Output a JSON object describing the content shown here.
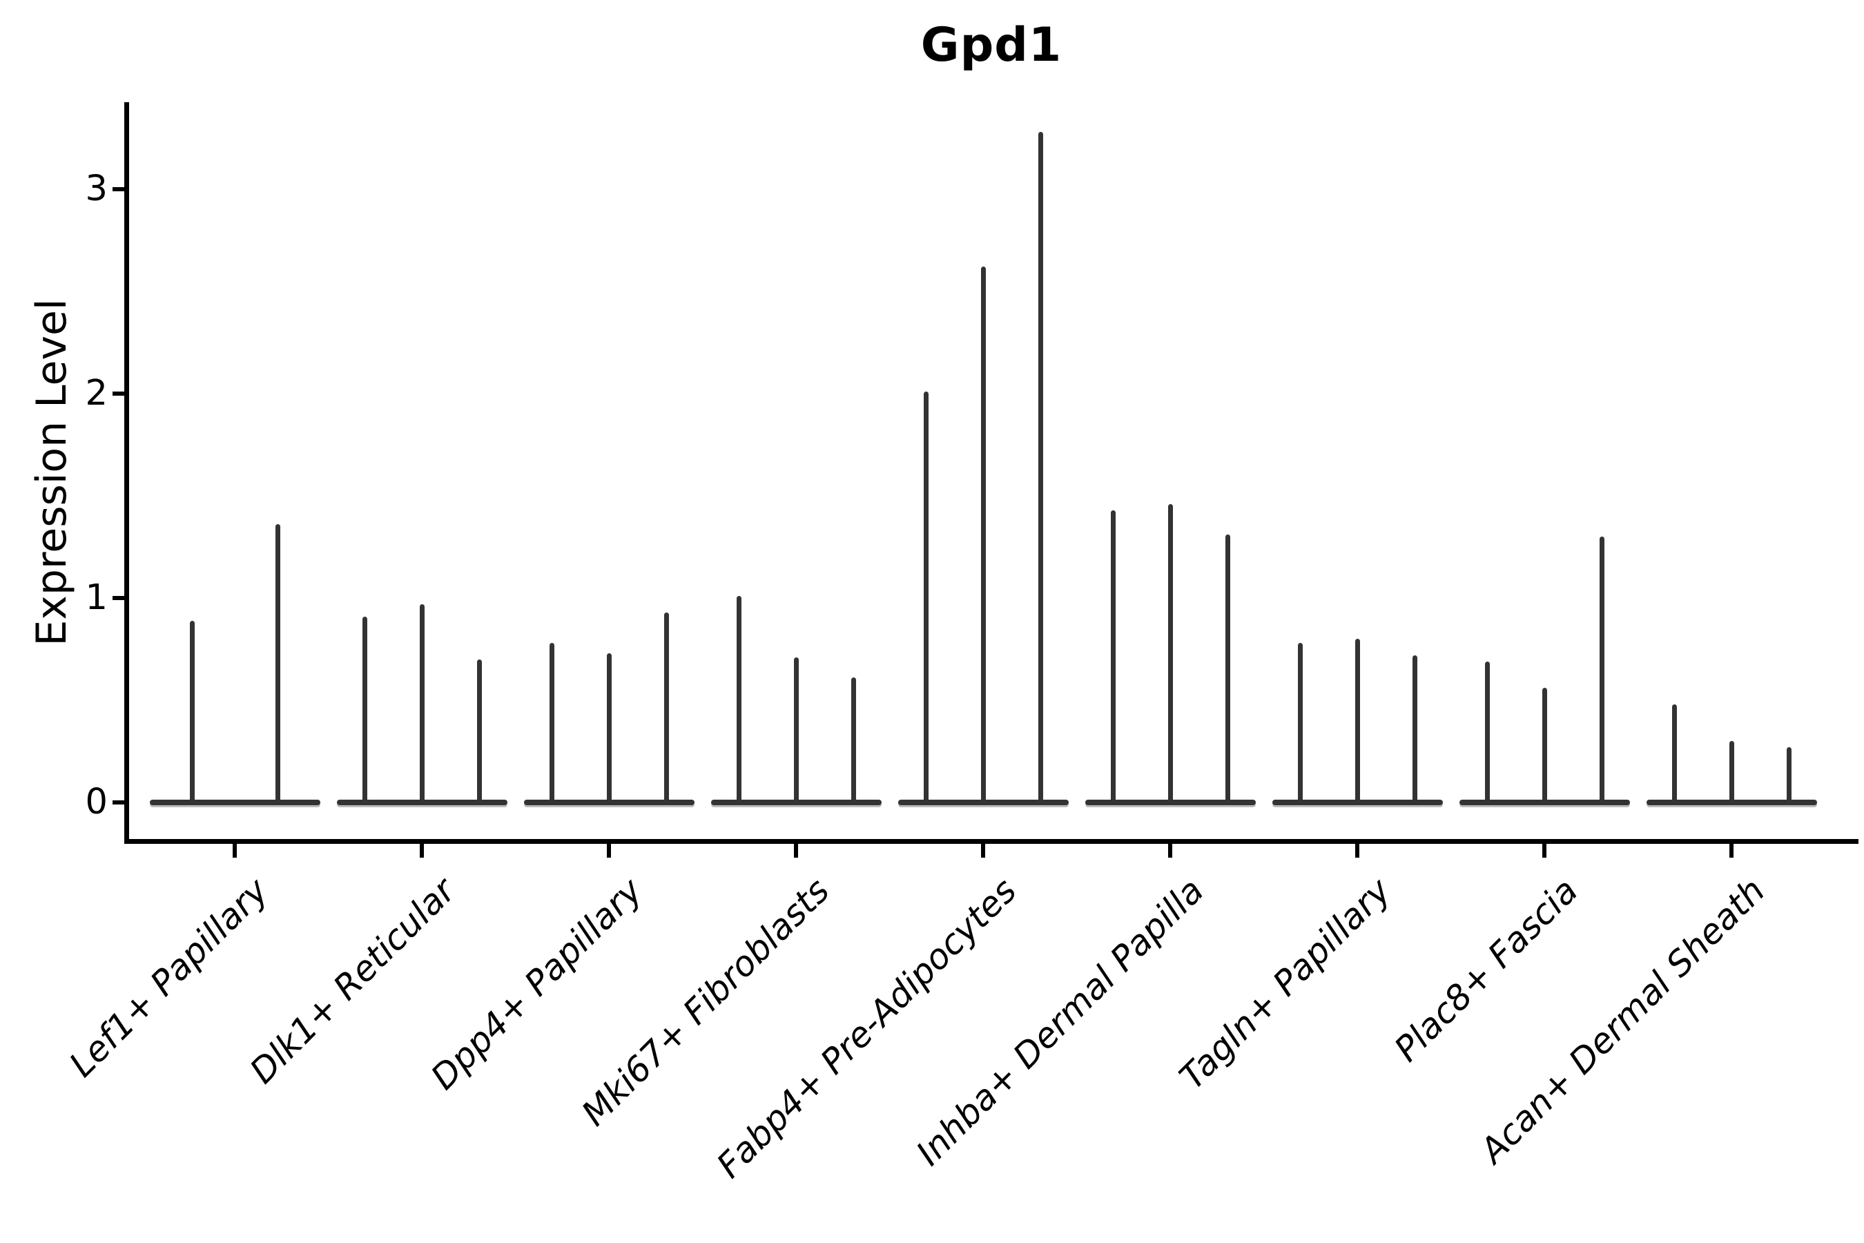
{
  "figure": {
    "title": "Gpd1",
    "y_axis": {
      "label": "Expression Level",
      "tick_labels": [
        "0",
        "1",
        "2",
        "3"
      ]
    },
    "x_axis": {
      "categories": [
        "Lef1+ Papillary",
        "Dlk1+ Reticular",
        "Dpp4+ Papillary",
        "Mki67+ Fibroblasts",
        "Fabp4+ Pre-Adipocytes",
        "Inhba+ Dermal Papilla",
        "Tagln+ Papillary",
        "Plac8+ Fascia",
        "Acan+ Dermal Sheath"
      ]
    }
  },
  "chart_data": {
    "type": "violin",
    "title": "Gpd1",
    "xlabel": "",
    "ylabel": "Expression Level",
    "yticks": [
      0,
      1,
      2,
      3
    ],
    "ylim": [
      -0.19,
      3.43
    ],
    "grid": false,
    "legend": "none",
    "violin_shape_note": "Each violin is collapsed flat at expression 0 (wide base bar) with a thin vertical spike reaching the maximum expression value; groups contain 2-3 violins sharing one category tick.",
    "categories": [
      "Lef1+ Papillary",
      "Dlk1+ Reticular",
      "Dpp4+ Papillary",
      "Mki67+ Fibroblasts",
      "Fabp4+ Pre-Adipocytes",
      "Inhba+ Dermal Papilla",
      "Tagln+ Papillary",
      "Plac8+ Fascia",
      "Acan+ Dermal Sheath"
    ],
    "series": [
      {
        "category": "Lef1+ Papillary",
        "violin_maxima": [
          0.89,
          1.36
        ]
      },
      {
        "category": "Dlk1+ Reticular",
        "violin_maxima": [
          0.91,
          0.97,
          0.7
        ]
      },
      {
        "category": "Dpp4+ Papillary",
        "violin_maxima": [
          0.78,
          0.73,
          0.93
        ]
      },
      {
        "category": "Mki67+ Fibroblasts",
        "violin_maxima": [
          1.01,
          0.71,
          0.61
        ]
      },
      {
        "category": "Fabp4+ Pre-Adipocytes",
        "violin_maxima": [
          2.01,
          2.62,
          3.28
        ]
      },
      {
        "category": "Inhba+ Dermal Papilla",
        "violin_maxima": [
          1.43,
          1.46,
          1.31
        ]
      },
      {
        "category": "Tagln+ Papillary",
        "violin_maxima": [
          0.78,
          0.8,
          0.72
        ]
      },
      {
        "category": "Plac8+ Fascia",
        "violin_maxima": [
          0.69,
          0.56,
          1.3
        ]
      },
      {
        "category": "Acan+ Dermal Sheath",
        "violin_maxima": [
          0.48,
          0.3,
          0.27
        ]
      }
    ]
  },
  "style": {
    "violin_color": "#333333",
    "axis_color": "#000000",
    "background_color": "#ffffff"
  }
}
